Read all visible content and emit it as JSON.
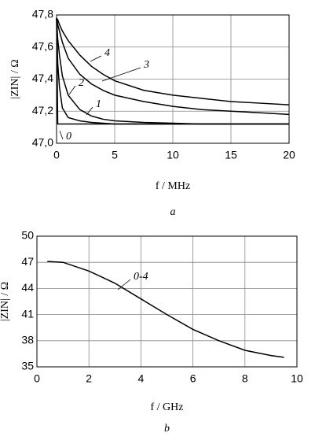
{
  "chart_data": [
    {
      "type": "line",
      "caption": "a",
      "xlabel": "f / MHz",
      "ylabel": "|ZIN| / Ω",
      "x": [
        0,
        0.1,
        0.25,
        0.5,
        1,
        2,
        3,
        4,
        5,
        7.5,
        10,
        12.5,
        15,
        17.5,
        20
      ],
      "xlim": [
        0,
        20
      ],
      "xticks": [
        0,
        5,
        10,
        15,
        20
      ],
      "ylim": [
        47.0,
        47.8
      ],
      "yticks": [
        {
          "value": 47.0,
          "label": "47,0"
        },
        {
          "value": 47.2,
          "label": "47,2"
        },
        {
          "value": 47.4,
          "label": "47,4"
        },
        {
          "value": 47.6,
          "label": "47,6"
        },
        {
          "value": 47.8,
          "label": "47,8"
        }
      ],
      "grid": true,
      "series": [
        {
          "name": "0",
          "color": "#000000",
          "values": [
            47.78,
            47.12,
            47.12,
            47.12,
            47.12,
            47.12,
            47.12,
            47.12,
            47.12,
            47.12,
            47.12,
            47.12,
            47.12,
            47.12,
            47.12
          ]
        },
        {
          "name": "1",
          "color": "#000000",
          "values": [
            47.78,
            47.5,
            47.35,
            47.22,
            47.16,
            47.14,
            47.13,
            47.125,
            47.12,
            47.12,
            47.12,
            47.12,
            47.12,
            47.12,
            47.12
          ]
        },
        {
          "name": "2",
          "color": "#000000",
          "values": [
            47.78,
            47.65,
            47.55,
            47.42,
            47.3,
            47.21,
            47.17,
            47.15,
            47.14,
            47.13,
            47.125,
            47.12,
            47.12,
            47.12,
            47.12
          ]
        },
        {
          "name": "3",
          "color": "#000000",
          "values": [
            47.78,
            47.74,
            47.7,
            47.63,
            47.53,
            47.43,
            47.37,
            47.33,
            47.3,
            47.26,
            47.23,
            47.21,
            47.2,
            47.19,
            47.18
          ]
        },
        {
          "name": "4",
          "color": "#000000",
          "values": [
            47.78,
            47.77,
            47.74,
            47.7,
            47.64,
            47.55,
            47.48,
            47.43,
            47.39,
            47.33,
            47.3,
            47.28,
            47.26,
            47.25,
            47.24
          ]
        }
      ]
    },
    {
      "type": "line",
      "caption": "b",
      "xlabel": "f / GHz",
      "ylabel": "|ZIN| / Ω",
      "x": [
        0.4,
        1,
        2,
        3,
        4,
        5,
        6,
        7,
        8,
        9,
        9.5
      ],
      "xlim": [
        0,
        10
      ],
      "xticks": [
        0,
        2,
        4,
        6,
        8,
        10
      ],
      "ylim": [
        35,
        50
      ],
      "yticks": [
        35,
        38,
        41,
        44,
        47,
        50
      ],
      "grid": true,
      "series": [
        {
          "name": "0-4",
          "color": "#000000",
          "values": [
            47.1,
            47.0,
            46.0,
            44.6,
            42.8,
            41.0,
            39.3,
            38.0,
            36.9,
            36.3,
            36.1
          ]
        }
      ]
    }
  ]
}
